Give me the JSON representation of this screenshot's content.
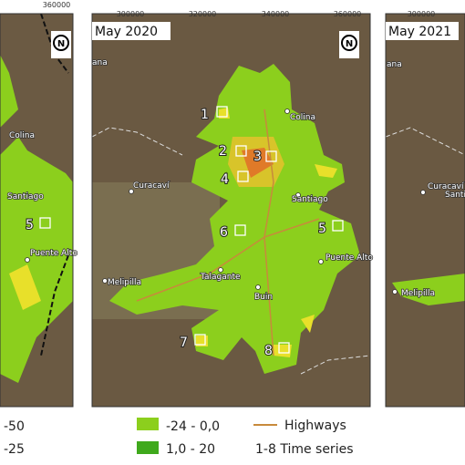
{
  "panels": [
    {
      "axis_labels": [
        "360000"
      ],
      "north": "N",
      "places": [
        "Colina",
        "Santiago",
        "Puente Alto"
      ],
      "sites": [
        "5"
      ]
    },
    {
      "title": "May 2020",
      "axis_labels": [
        "300000",
        "320000",
        "340000",
        "360000"
      ],
      "north": "N",
      "places": [
        "ana",
        "Colina",
        "Curacaví",
        "Santiago",
        "Puente Alto",
        "Melipilla",
        "Talagante",
        "Buin"
      ],
      "sites": [
        "1",
        "2",
        "3",
        "4",
        "5",
        "6",
        "7",
        "8"
      ]
    },
    {
      "title": "May 2021",
      "axis_labels": [
        "300000"
      ],
      "places": [
        "ana",
        "Curacaví",
        "Santiago",
        "Melipilla"
      ]
    }
  ],
  "legend": {
    "items": [
      "-50",
      "-25",
      "-24 - 0,0",
      "1,0 - 20",
      "Highways",
      "1-8 Time series"
    ]
  }
}
